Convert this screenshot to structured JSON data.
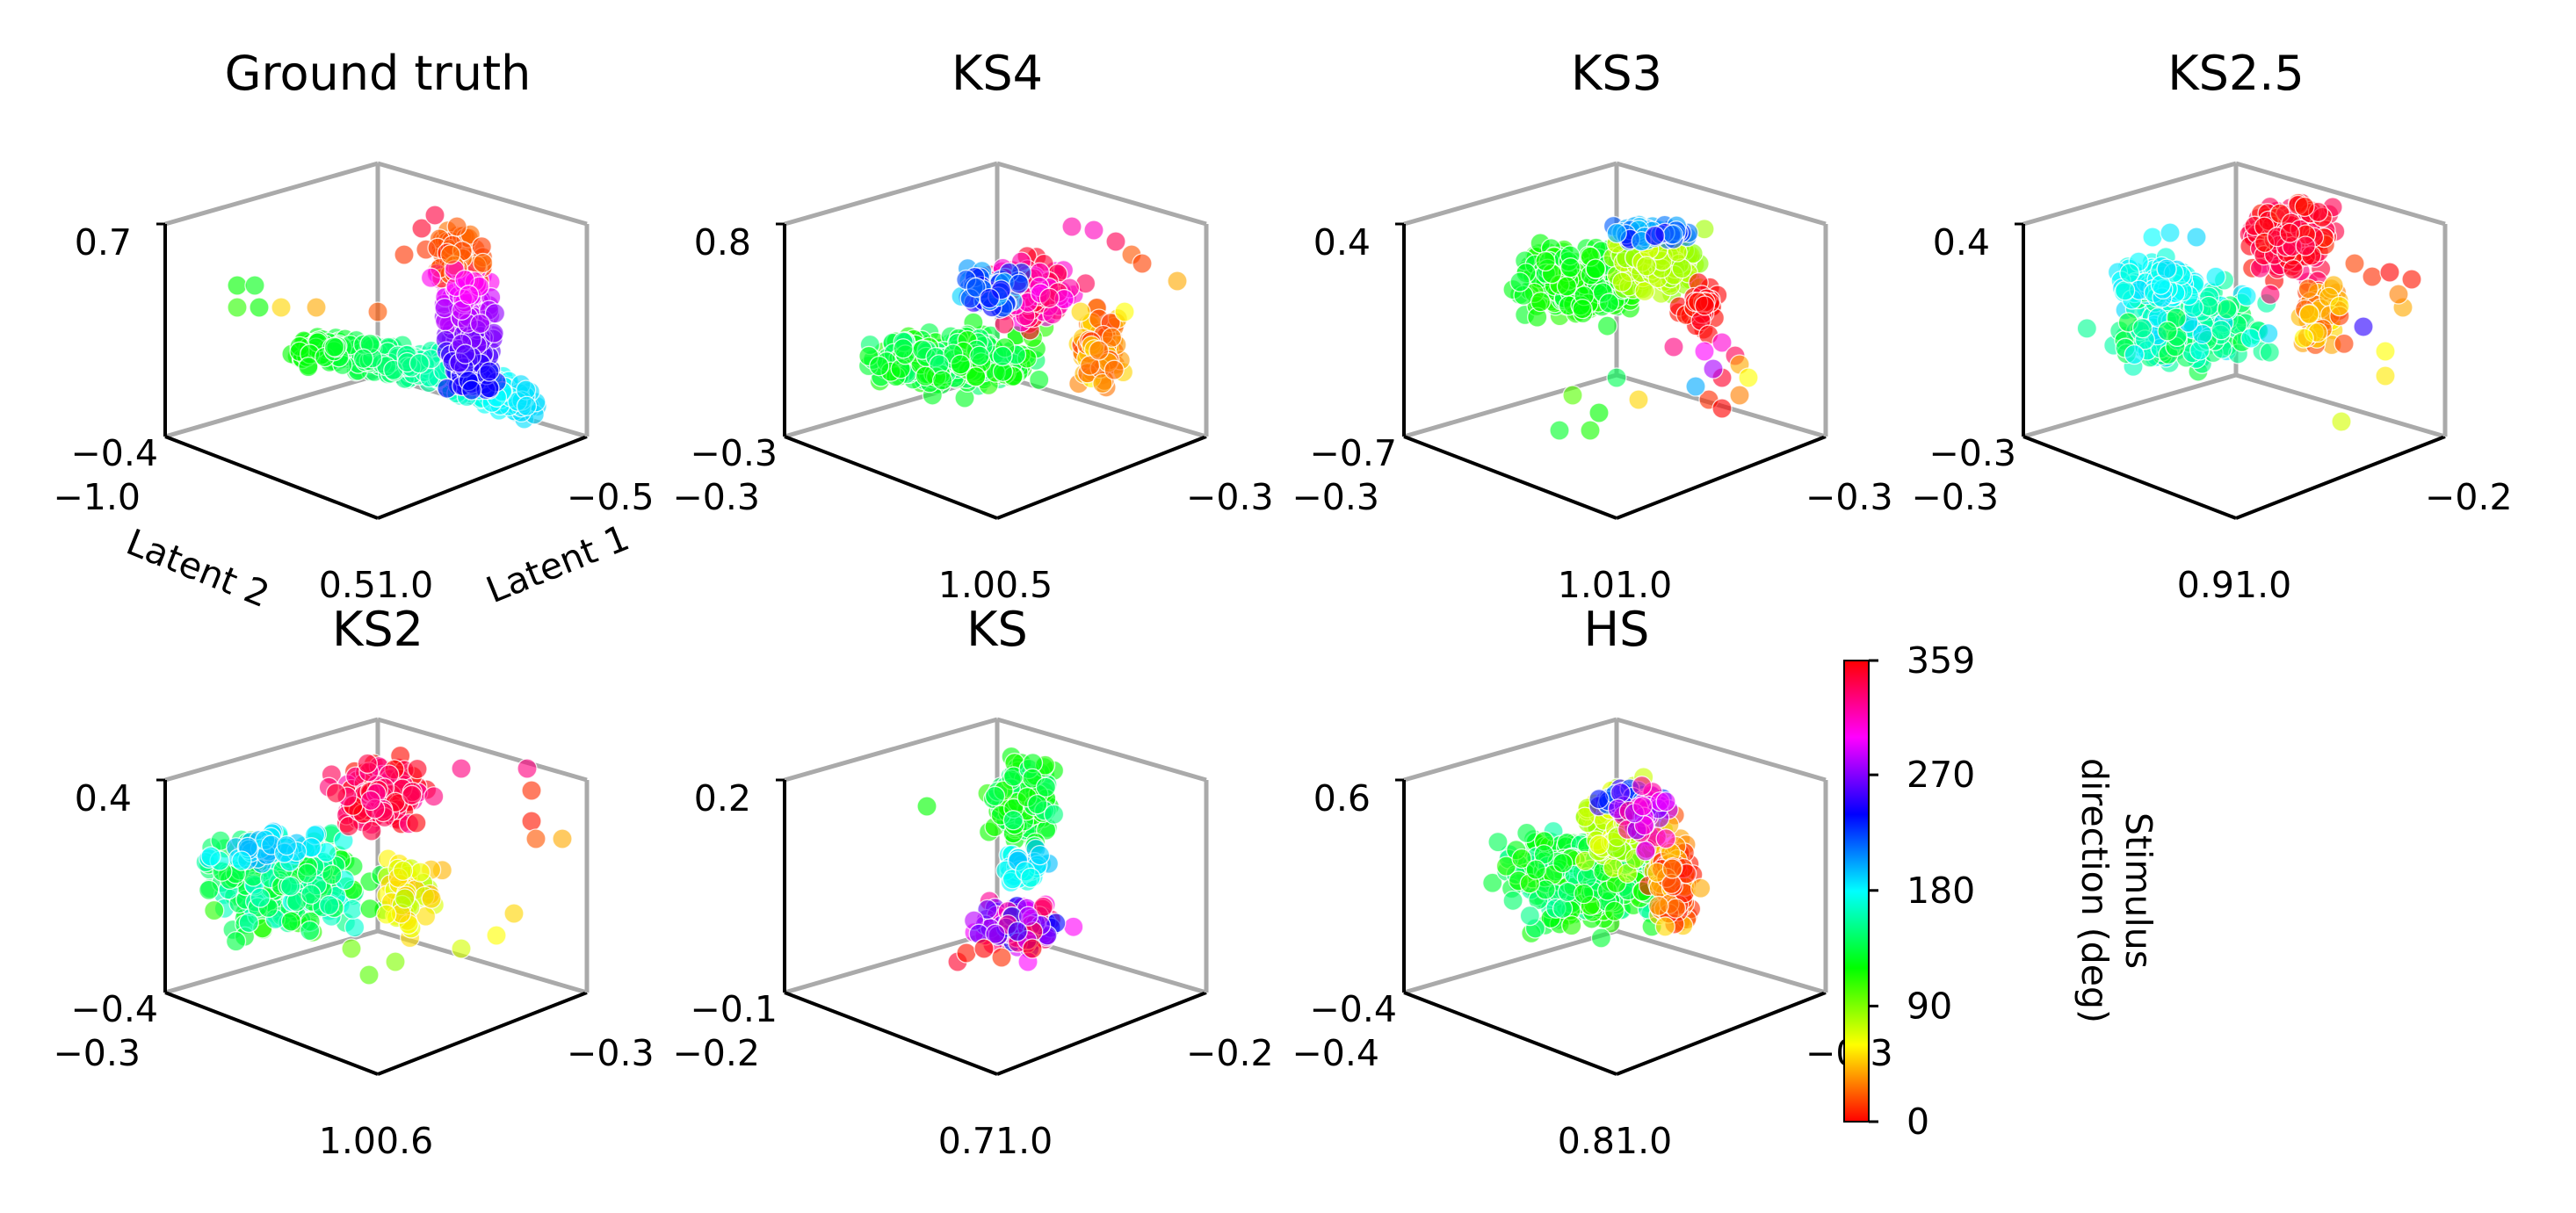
{
  "chart_data": [
    {
      "type": "scatter",
      "title": "Ground truth",
      "z_ticks": [
        "0.7",
        "−0.4"
      ],
      "left_ticks": [
        "−1.0",
        "0.5"
      ],
      "right_ticks": [
        "−0.5",
        "1.0"
      ],
      "xlabel": "Latent 1",
      "ylabel": "Latent 2",
      "shape": "gt"
    },
    {
      "type": "scatter",
      "title": "KS4",
      "z_ticks": [
        "0.8",
        "−0.3"
      ],
      "left_ticks": [
        "−0.3",
        "1.0"
      ],
      "right_ticks": [
        "−0.3",
        "0.5"
      ],
      "xlabel": "",
      "ylabel": "",
      "shape": "ks4"
    },
    {
      "type": "scatter",
      "title": "KS3",
      "z_ticks": [
        "0.4",
        "−0.7"
      ],
      "left_ticks": [
        "−0.3",
        "1.0"
      ],
      "right_ticks": [
        "−0.3",
        "1.0"
      ],
      "xlabel": "",
      "ylabel": "",
      "shape": "ks3"
    },
    {
      "type": "scatter",
      "title": "KS2.5",
      "z_ticks": [
        "0.4",
        "−0.3"
      ],
      "left_ticks": [
        "−0.3",
        "0.9"
      ],
      "right_ticks": [
        "−0.2",
        "1.0"
      ],
      "xlabel": "",
      "ylabel": "",
      "shape": "ks25"
    },
    {
      "type": "scatter",
      "title": "KS2",
      "z_ticks": [
        "0.4",
        "−0.4"
      ],
      "left_ticks": [
        "−0.3",
        "1.0"
      ],
      "right_ticks": [
        "−0.3",
        "0.6"
      ],
      "xlabel": "",
      "ylabel": "",
      "shape": "ks2"
    },
    {
      "type": "scatter",
      "title": "KS",
      "z_ticks": [
        "0.2",
        "−0.1"
      ],
      "left_ticks": [
        "−0.2",
        "0.7"
      ],
      "right_ticks": [
        "−0.2",
        "1.0"
      ],
      "xlabel": "",
      "ylabel": "",
      "shape": "ks"
    },
    {
      "type": "scatter",
      "title": "HS",
      "z_ticks": [
        "0.6",
        "−0.4"
      ],
      "left_ticks": [
        "−0.4",
        "0.8"
      ],
      "right_ticks": [
        "−0.3",
        "1.0"
      ],
      "xlabel": "",
      "ylabel": "",
      "shape": "hs"
    }
  ],
  "colorbar": {
    "label_line1": "Stimulus",
    "label_line2": "direction (deg)",
    "ticks": [
      "359",
      "270",
      "180",
      "90",
      "0"
    ],
    "tick_values": [
      359,
      270,
      180,
      90,
      0
    ],
    "range": [
      0,
      359
    ],
    "colormap": "hsv"
  },
  "colors": {
    "axis_front": "#000000",
    "axis_back": "#aaaaaa"
  }
}
